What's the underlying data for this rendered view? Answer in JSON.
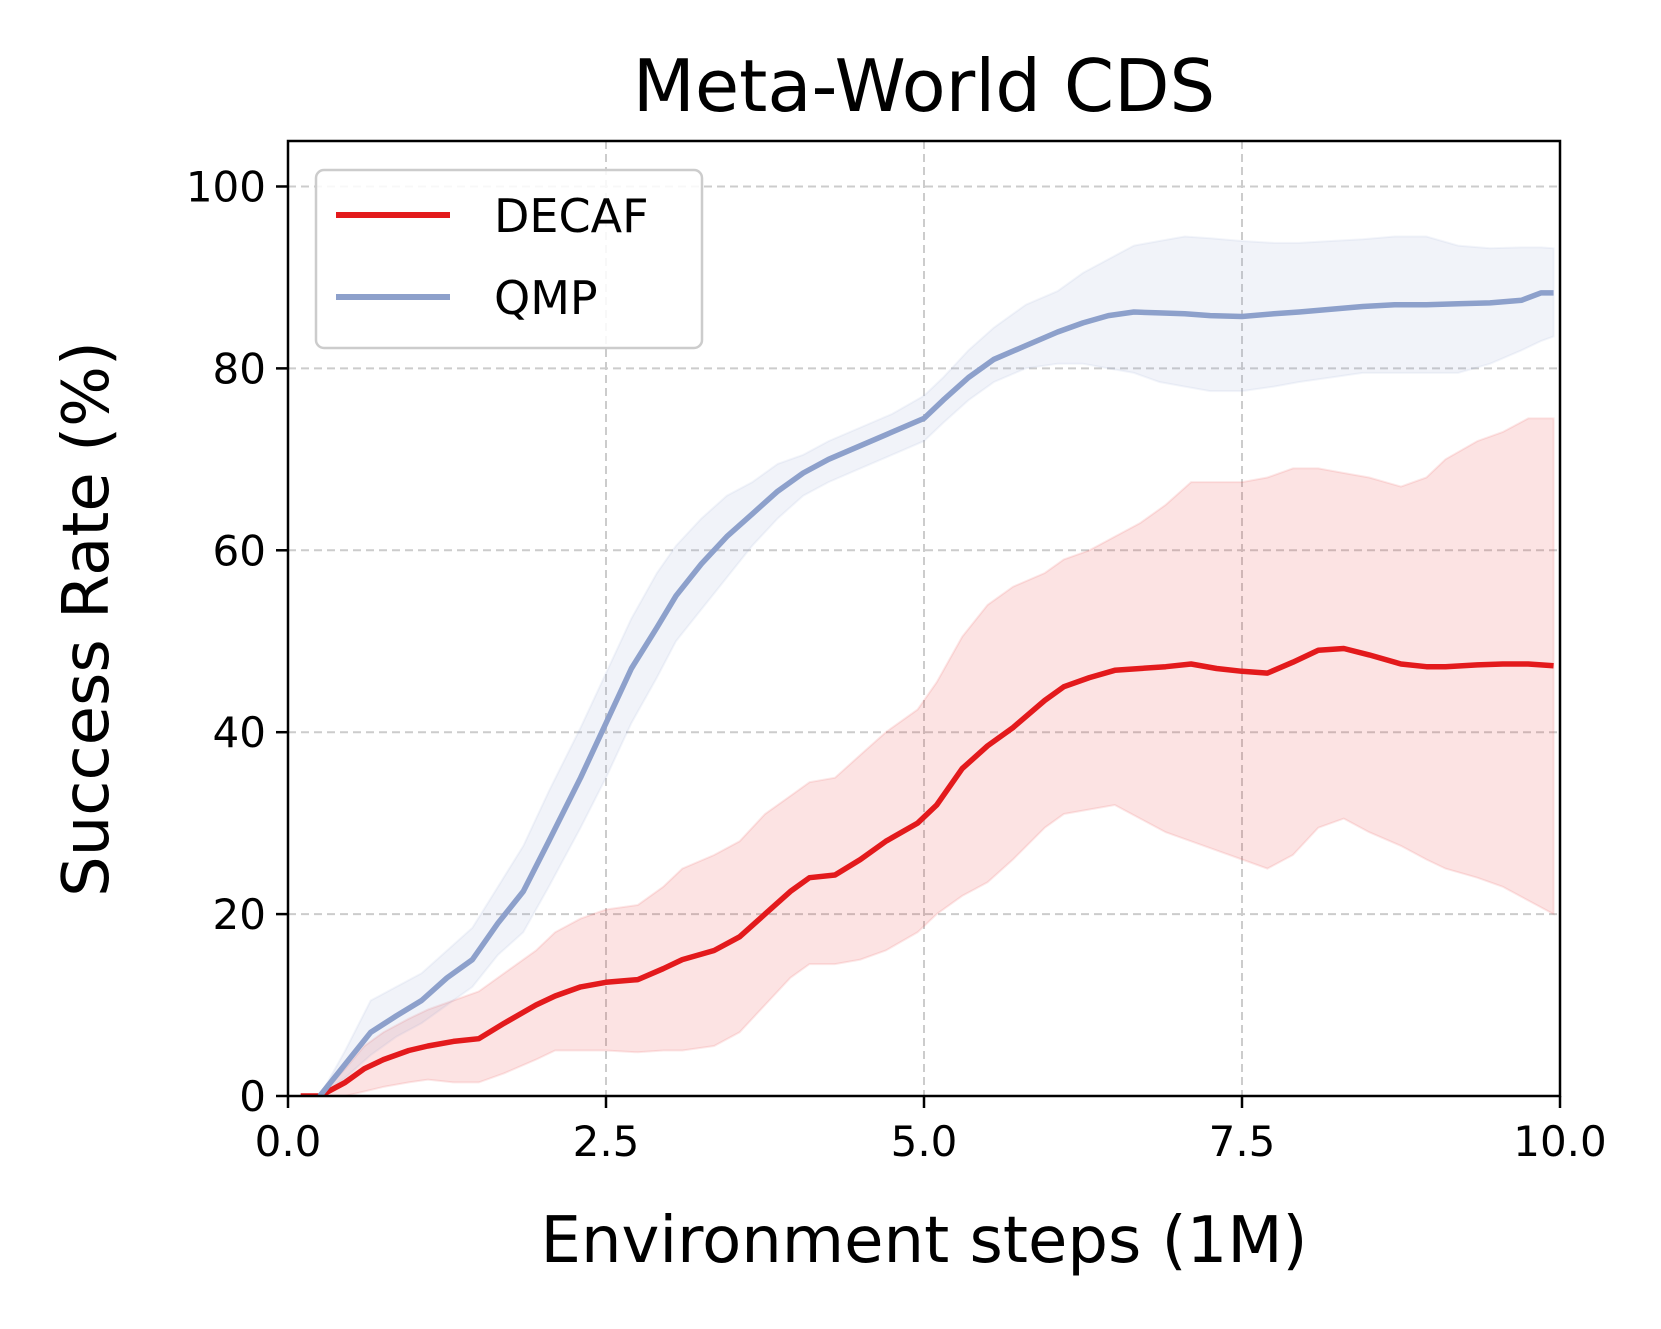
{
  "chart_data": {
    "type": "line",
    "title": "Meta-World CDS",
    "xlabel": "Environment steps (1M)",
    "ylabel": "Success Rate (%)",
    "xlim": [
      0,
      10
    ],
    "ylim": [
      0,
      105
    ],
    "xticks": [
      0,
      2.5,
      5,
      7.5,
      10
    ],
    "xtick_labels": [
      "0.0",
      "2.5",
      "5.0",
      "7.5",
      "10.0"
    ],
    "yticks": [
      0,
      20,
      40,
      60,
      80,
      100
    ],
    "ytick_labels": [
      "0",
      "20",
      "40",
      "60",
      "80",
      "100"
    ],
    "grid": true,
    "legend_position": "top-left",
    "series": [
      {
        "name": "DECAF",
        "color": "#e31a1c",
        "x": [
          0.1,
          0.25,
          0.45,
          0.6,
          0.75,
          0.95,
          1.1,
          1.3,
          1.5,
          1.7,
          1.95,
          2.1,
          2.3,
          2.5,
          2.75,
          2.95,
          3.1,
          3.35,
          3.55,
          3.75,
          3.95,
          4.1,
          4.3,
          4.5,
          4.7,
          4.95,
          5.1,
          5.3,
          5.5,
          5.7,
          5.95,
          6.1,
          6.3,
          6.5,
          6.7,
          6.9,
          7.1,
          7.3,
          7.5,
          7.7,
          7.9,
          8.1,
          8.3,
          8.5,
          8.75,
          8.95,
          9.1,
          9.35,
          9.55,
          9.75,
          9.95
        ],
        "values": [
          0,
          0,
          1.5,
          3,
          4,
          5,
          5.5,
          6,
          6.3,
          8,
          10,
          11,
          12,
          12.5,
          12.8,
          14,
          15,
          16,
          17.5,
          20,
          22.5,
          24,
          24.3,
          26,
          28,
          30,
          32,
          36,
          38.5,
          40.5,
          43.5,
          45,
          46,
          46.8,
          47,
          47.2,
          47.5,
          47,
          46.7,
          46.5,
          47.7,
          49,
          49.2,
          48.5,
          47.5,
          47.2,
          47.2,
          47.4,
          47.5,
          47.5,
          47.3
        ],
        "lower": [
          0,
          0,
          0,
          0.5,
          1,
          1.5,
          1.8,
          1.5,
          1.5,
          2.5,
          4,
          5,
          5,
          5,
          4.8,
          5,
          5,
          5.5,
          7,
          10,
          13,
          14.5,
          14.5,
          15,
          16,
          18,
          20,
          22,
          23.5,
          26,
          29.5,
          31,
          31.5,
          32,
          30.5,
          29,
          28,
          27,
          26,
          25,
          26.5,
          29.5,
          30.5,
          29,
          27.5,
          26,
          25,
          24,
          23,
          21.5,
          20
        ],
        "upper": [
          0,
          0,
          3,
          5.5,
          7,
          8.5,
          9.5,
          10.5,
          11.5,
          13.5,
          16,
          18,
          19.5,
          20.5,
          21,
          23,
          25,
          26.5,
          28,
          31,
          33,
          34.5,
          35,
          37.5,
          40,
          42.5,
          45.5,
          50.5,
          54,
          56,
          57.5,
          59,
          60,
          61.5,
          63,
          65,
          67.5,
          67.5,
          67.5,
          68,
          69,
          69,
          68.5,
          68,
          67,
          68,
          70,
          72,
          73,
          74.5,
          74.5
        ]
      },
      {
        "name": "QMP",
        "color": "#8da0cb",
        "x": [
          0.25,
          0.45,
          0.65,
          0.85,
          1.05,
          1.25,
          1.45,
          1.65,
          1.85,
          2.05,
          2.3,
          2.5,
          2.7,
          2.9,
          3.05,
          3.25,
          3.45,
          3.65,
          3.85,
          4.05,
          4.25,
          4.5,
          4.75,
          5.0,
          5.15,
          5.35,
          5.55,
          5.8,
          6.05,
          6.25,
          6.45,
          6.65,
          6.85,
          7.05,
          7.25,
          7.5,
          7.75,
          7.95,
          8.2,
          8.45,
          8.7,
          8.95,
          9.2,
          9.45,
          9.7,
          9.85,
          9.95
        ],
        "values": [
          0,
          3.5,
          7,
          8.8,
          10.5,
          13,
          15,
          19,
          22.5,
          28,
          35,
          41,
          47,
          51.5,
          55,
          58.5,
          61.5,
          64,
          66.5,
          68.5,
          70,
          71.5,
          73,
          74.5,
          76.5,
          79,
          81,
          82.5,
          84,
          85,
          85.8,
          86.2,
          86.1,
          86,
          85.8,
          85.7,
          86,
          86.2,
          86.5,
          86.8,
          87,
          87,
          87.1,
          87.2,
          87.5,
          88.3,
          88.3
        ],
        "lower": [
          0,
          2,
          4.5,
          6.5,
          8,
          10,
          12,
          15.5,
          18,
          23,
          29.5,
          35,
          41,
          46,
          50,
          53.5,
          57,
          60.5,
          63.5,
          66,
          67.5,
          69,
          70.5,
          72,
          74,
          76.5,
          78.5,
          80,
          80.5,
          80.5,
          80,
          79.5,
          78.5,
          78,
          77.5,
          77.5,
          78,
          78.5,
          79,
          79.5,
          79.5,
          79.5,
          79.5,
          80.5,
          82,
          83,
          83.5
        ],
        "upper": [
          0,
          5,
          10.5,
          12,
          13.5,
          16,
          18.5,
          23,
          27.5,
          33.5,
          40.5,
          46.5,
          52.5,
          57.5,
          60.5,
          63.5,
          66,
          67.5,
          69.5,
          70.5,
          72,
          73.5,
          75,
          77,
          79,
          82,
          84.5,
          87,
          88.5,
          90.5,
          92,
          93.5,
          94,
          94.5,
          94.3,
          94,
          93.8,
          93.8,
          94,
          94.2,
          94.5,
          94.5,
          93.5,
          93.2,
          93.3,
          93.3,
          93.2
        ]
      }
    ]
  }
}
